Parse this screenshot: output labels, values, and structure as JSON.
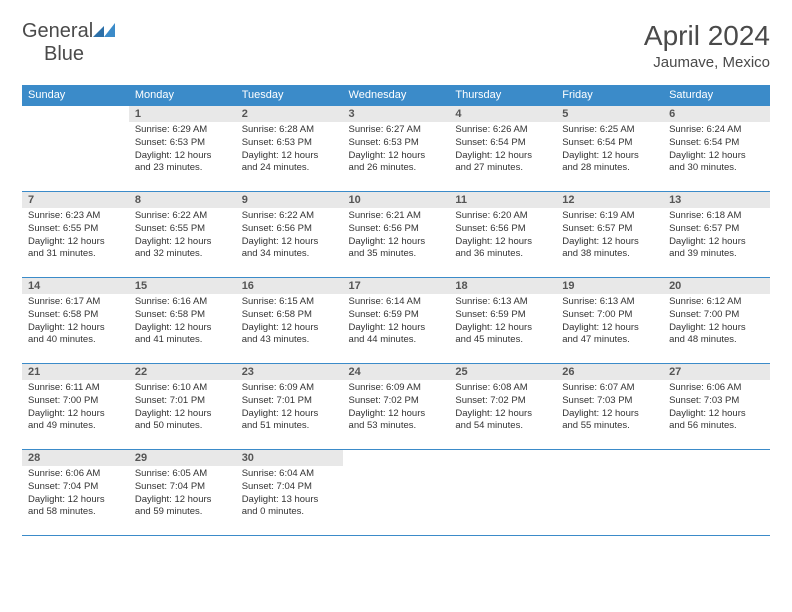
{
  "logo": {
    "word1": "General",
    "word2": "Blue"
  },
  "title": "April 2024",
  "location": "Jaumave, Mexico",
  "colors": {
    "header_bg": "#3b8bc9",
    "header_text": "#ffffff",
    "daynum_bg": "#e8e8e8",
    "border": "#3b8bc9",
    "text": "#333333"
  },
  "weekdays": [
    "Sunday",
    "Monday",
    "Tuesday",
    "Wednesday",
    "Thursday",
    "Friday",
    "Saturday"
  ],
  "grid": [
    [
      null,
      {
        "n": "1",
        "sr": "Sunrise: 6:29 AM",
        "ss": "Sunset: 6:53 PM",
        "d1": "Daylight: 12 hours",
        "d2": "and 23 minutes."
      },
      {
        "n": "2",
        "sr": "Sunrise: 6:28 AM",
        "ss": "Sunset: 6:53 PM",
        "d1": "Daylight: 12 hours",
        "d2": "and 24 minutes."
      },
      {
        "n": "3",
        "sr": "Sunrise: 6:27 AM",
        "ss": "Sunset: 6:53 PM",
        "d1": "Daylight: 12 hours",
        "d2": "and 26 minutes."
      },
      {
        "n": "4",
        "sr": "Sunrise: 6:26 AM",
        "ss": "Sunset: 6:54 PM",
        "d1": "Daylight: 12 hours",
        "d2": "and 27 minutes."
      },
      {
        "n": "5",
        "sr": "Sunrise: 6:25 AM",
        "ss": "Sunset: 6:54 PM",
        "d1": "Daylight: 12 hours",
        "d2": "and 28 minutes."
      },
      {
        "n": "6",
        "sr": "Sunrise: 6:24 AM",
        "ss": "Sunset: 6:54 PM",
        "d1": "Daylight: 12 hours",
        "d2": "and 30 minutes."
      }
    ],
    [
      {
        "n": "7",
        "sr": "Sunrise: 6:23 AM",
        "ss": "Sunset: 6:55 PM",
        "d1": "Daylight: 12 hours",
        "d2": "and 31 minutes."
      },
      {
        "n": "8",
        "sr": "Sunrise: 6:22 AM",
        "ss": "Sunset: 6:55 PM",
        "d1": "Daylight: 12 hours",
        "d2": "and 32 minutes."
      },
      {
        "n": "9",
        "sr": "Sunrise: 6:22 AM",
        "ss": "Sunset: 6:56 PM",
        "d1": "Daylight: 12 hours",
        "d2": "and 34 minutes."
      },
      {
        "n": "10",
        "sr": "Sunrise: 6:21 AM",
        "ss": "Sunset: 6:56 PM",
        "d1": "Daylight: 12 hours",
        "d2": "and 35 minutes."
      },
      {
        "n": "11",
        "sr": "Sunrise: 6:20 AM",
        "ss": "Sunset: 6:56 PM",
        "d1": "Daylight: 12 hours",
        "d2": "and 36 minutes."
      },
      {
        "n": "12",
        "sr": "Sunrise: 6:19 AM",
        "ss": "Sunset: 6:57 PM",
        "d1": "Daylight: 12 hours",
        "d2": "and 38 minutes."
      },
      {
        "n": "13",
        "sr": "Sunrise: 6:18 AM",
        "ss": "Sunset: 6:57 PM",
        "d1": "Daylight: 12 hours",
        "d2": "and 39 minutes."
      }
    ],
    [
      {
        "n": "14",
        "sr": "Sunrise: 6:17 AM",
        "ss": "Sunset: 6:58 PM",
        "d1": "Daylight: 12 hours",
        "d2": "and 40 minutes."
      },
      {
        "n": "15",
        "sr": "Sunrise: 6:16 AM",
        "ss": "Sunset: 6:58 PM",
        "d1": "Daylight: 12 hours",
        "d2": "and 41 minutes."
      },
      {
        "n": "16",
        "sr": "Sunrise: 6:15 AM",
        "ss": "Sunset: 6:58 PM",
        "d1": "Daylight: 12 hours",
        "d2": "and 43 minutes."
      },
      {
        "n": "17",
        "sr": "Sunrise: 6:14 AM",
        "ss": "Sunset: 6:59 PM",
        "d1": "Daylight: 12 hours",
        "d2": "and 44 minutes."
      },
      {
        "n": "18",
        "sr": "Sunrise: 6:13 AM",
        "ss": "Sunset: 6:59 PM",
        "d1": "Daylight: 12 hours",
        "d2": "and 45 minutes."
      },
      {
        "n": "19",
        "sr": "Sunrise: 6:13 AM",
        "ss": "Sunset: 7:00 PM",
        "d1": "Daylight: 12 hours",
        "d2": "and 47 minutes."
      },
      {
        "n": "20",
        "sr": "Sunrise: 6:12 AM",
        "ss": "Sunset: 7:00 PM",
        "d1": "Daylight: 12 hours",
        "d2": "and 48 minutes."
      }
    ],
    [
      {
        "n": "21",
        "sr": "Sunrise: 6:11 AM",
        "ss": "Sunset: 7:00 PM",
        "d1": "Daylight: 12 hours",
        "d2": "and 49 minutes."
      },
      {
        "n": "22",
        "sr": "Sunrise: 6:10 AM",
        "ss": "Sunset: 7:01 PM",
        "d1": "Daylight: 12 hours",
        "d2": "and 50 minutes."
      },
      {
        "n": "23",
        "sr": "Sunrise: 6:09 AM",
        "ss": "Sunset: 7:01 PM",
        "d1": "Daylight: 12 hours",
        "d2": "and 51 minutes."
      },
      {
        "n": "24",
        "sr": "Sunrise: 6:09 AM",
        "ss": "Sunset: 7:02 PM",
        "d1": "Daylight: 12 hours",
        "d2": "and 53 minutes."
      },
      {
        "n": "25",
        "sr": "Sunrise: 6:08 AM",
        "ss": "Sunset: 7:02 PM",
        "d1": "Daylight: 12 hours",
        "d2": "and 54 minutes."
      },
      {
        "n": "26",
        "sr": "Sunrise: 6:07 AM",
        "ss": "Sunset: 7:03 PM",
        "d1": "Daylight: 12 hours",
        "d2": "and 55 minutes."
      },
      {
        "n": "27",
        "sr": "Sunrise: 6:06 AM",
        "ss": "Sunset: 7:03 PM",
        "d1": "Daylight: 12 hours",
        "d2": "and 56 minutes."
      }
    ],
    [
      {
        "n": "28",
        "sr": "Sunrise: 6:06 AM",
        "ss": "Sunset: 7:04 PM",
        "d1": "Daylight: 12 hours",
        "d2": "and 58 minutes."
      },
      {
        "n": "29",
        "sr": "Sunrise: 6:05 AM",
        "ss": "Sunset: 7:04 PM",
        "d1": "Daylight: 12 hours",
        "d2": "and 59 minutes."
      },
      {
        "n": "30",
        "sr": "Sunrise: 6:04 AM",
        "ss": "Sunset: 7:04 PM",
        "d1": "Daylight: 13 hours",
        "d2": "and 0 minutes."
      },
      null,
      null,
      null,
      null
    ]
  ]
}
